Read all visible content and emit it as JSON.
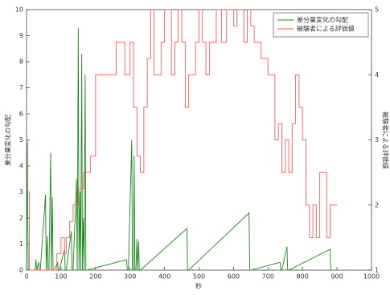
{
  "chart_data": {
    "type": "line",
    "xlabel": "秒",
    "ylabel": "差分量変化の勾配",
    "y2label": "被験者による評価値",
    "xlim": [
      0,
      1000
    ],
    "xticks": [
      0,
      100,
      200,
      300,
      400,
      500,
      600,
      700,
      800,
      900,
      1000
    ],
    "ylim": [
      0,
      10
    ],
    "yticks": [
      0,
      1,
      2,
      3,
      4,
      5,
      6,
      7,
      8,
      9,
      10
    ],
    "y2lim": [
      1,
      5
    ],
    "y2ticks": [
      1,
      2,
      3,
      4,
      5
    ],
    "legend": "upper right",
    "series": [
      {
        "name": "差分量変化の勾配",
        "color": "#1f8a1f",
        "x": [
          0,
          2,
          5,
          25,
          27,
          30,
          35,
          37,
          40,
          55,
          57,
          60,
          62,
          65,
          70,
          72,
          75,
          77,
          80,
          90,
          92,
          95,
          110,
          112,
          115,
          130,
          132,
          135,
          145,
          147,
          150,
          152,
          155,
          157,
          160,
          162,
          165,
          167,
          170,
          172,
          175,
          290,
          292,
          295,
          305,
          307,
          310,
          312,
          314,
          317,
          320,
          322,
          325,
          327,
          330,
          465,
          467,
          470,
          645,
          647,
          650,
          735,
          737,
          740,
          755,
          757,
          760,
          880,
          882,
          885,
          900
        ],
        "values": [
          0,
          4.8,
          0,
          0,
          0.4,
          0,
          0.3,
          0,
          0,
          2.9,
          0,
          1.3,
          0,
          0,
          4.5,
          0,
          2.8,
          0,
          0,
          0.3,
          0,
          0,
          0.8,
          0,
          0,
          1.5,
          0,
          0,
          3.5,
          0,
          9.3,
          0,
          3,
          0,
          8.3,
          0,
          2,
          0,
          7.5,
          0,
          0,
          0.4,
          0,
          0,
          5,
          0,
          0,
          4.4,
          0,
          0,
          1.2,
          0,
          1.1,
          0,
          0,
          1.6,
          0,
          0,
          2.2,
          0,
          0,
          0.3,
          0,
          0,
          0.9,
          0,
          0,
          0.8,
          0,
          0,
          0
        ]
      },
      {
        "name": "被験者による評価値",
        "color": "#ff5a5a",
        "axis": "y2",
        "x": [
          0,
          3,
          3,
          8,
          8,
          88,
          88,
          100,
          100,
          110,
          110,
          115,
          115,
          125,
          125,
          135,
          135,
          150,
          150,
          165,
          165,
          185,
          185,
          200,
          200,
          260,
          260,
          285,
          285,
          300,
          300,
          310,
          310,
          320,
          320,
          330,
          330,
          340,
          340,
          350,
          350,
          360,
          360,
          370,
          370,
          390,
          390,
          400,
          400,
          420,
          420,
          430,
          430,
          440,
          440,
          450,
          450,
          460,
          460,
          470,
          470,
          490,
          490,
          500,
          500,
          510,
          510,
          520,
          520,
          530,
          530,
          550,
          550,
          565,
          565,
          580,
          580,
          600,
          600,
          610,
          610,
          630,
          630,
          640,
          640,
          650,
          650,
          660,
          660,
          680,
          680,
          700,
          700,
          720,
          720,
          730,
          730,
          740,
          740,
          750,
          750,
          760,
          760,
          770,
          770,
          780,
          780,
          790,
          790,
          800,
          800,
          810,
          810,
          820,
          820,
          830,
          830,
          840,
          840,
          850,
          850,
          870,
          870,
          880,
          880,
          900
        ],
        "values": [
          3,
          3,
          2.2,
          2.2,
          1,
          1,
          1.25,
          1.25,
          1.5,
          1.5,
          1.25,
          1.25,
          1.5,
          1.5,
          1.75,
          1.75,
          2,
          2,
          2.25,
          2.25,
          2.5,
          2.5,
          2.75,
          2.75,
          4,
          4,
          4.5,
          4.5,
          4,
          4,
          4.5,
          4.5,
          3.5,
          3.5,
          2.75,
          2.75,
          2.5,
          2.5,
          3.5,
          3.5,
          4.25,
          4.25,
          5,
          5,
          4,
          4,
          4.5,
          4.5,
          5,
          5,
          4,
          4,
          4.5,
          4.5,
          5,
          5,
          4.5,
          4.5,
          3.5,
          3.5,
          4,
          4,
          4.5,
          4.5,
          5,
          5,
          4.5,
          4.5,
          4,
          4,
          4.5,
          4.5,
          5,
          5,
          4.5,
          4.5,
          5,
          5,
          4.75,
          4.75,
          5,
          5,
          4.5,
          4.5,
          5,
          5,
          4.75,
          4.75,
          4.5,
          4.5,
          4.25,
          4.25,
          4,
          4,
          3,
          3,
          3.25,
          3.25,
          2.5,
          2.5,
          3,
          3,
          2.5,
          2.5,
          3.25,
          3.25,
          4,
          4,
          3.5,
          3.5,
          3,
          3,
          2,
          2,
          1.5,
          1.5,
          2,
          2,
          1.5,
          1.5,
          2.5,
          2.5,
          1.5,
          1.5,
          2,
          2
        ]
      }
    ]
  }
}
